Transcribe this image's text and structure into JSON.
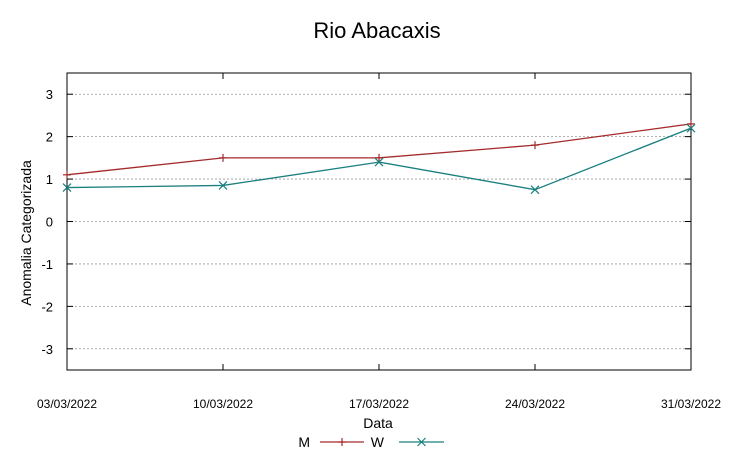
{
  "chart_data": {
    "type": "line",
    "title": "Rio Abacaxis",
    "xlabel": "Data",
    "ylabel": "Anomalia Categorizada",
    "x": [
      "03/03/2022",
      "10/03/2022",
      "17/03/2022",
      "24/03/2022",
      "31/03/2022"
    ],
    "ylim": [
      -3.5,
      3.5
    ],
    "yticks": [
      "3",
      "2",
      "1",
      "0",
      "-1",
      "-2",
      "-3"
    ],
    "ytick_values": [
      3,
      2,
      1,
      0,
      -1,
      -2,
      -3
    ],
    "grid": true,
    "legend_position": "bottom",
    "series": [
      {
        "name": "M",
        "values": [
          1.1,
          1.5,
          1.5,
          1.8,
          2.3
        ],
        "color": "#a52a2a",
        "marker": "+"
      },
      {
        "name": "W",
        "values": [
          0.8,
          0.85,
          1.4,
          0.75,
          2.2
        ],
        "color": "#1a7f7f",
        "marker": "x"
      }
    ]
  }
}
